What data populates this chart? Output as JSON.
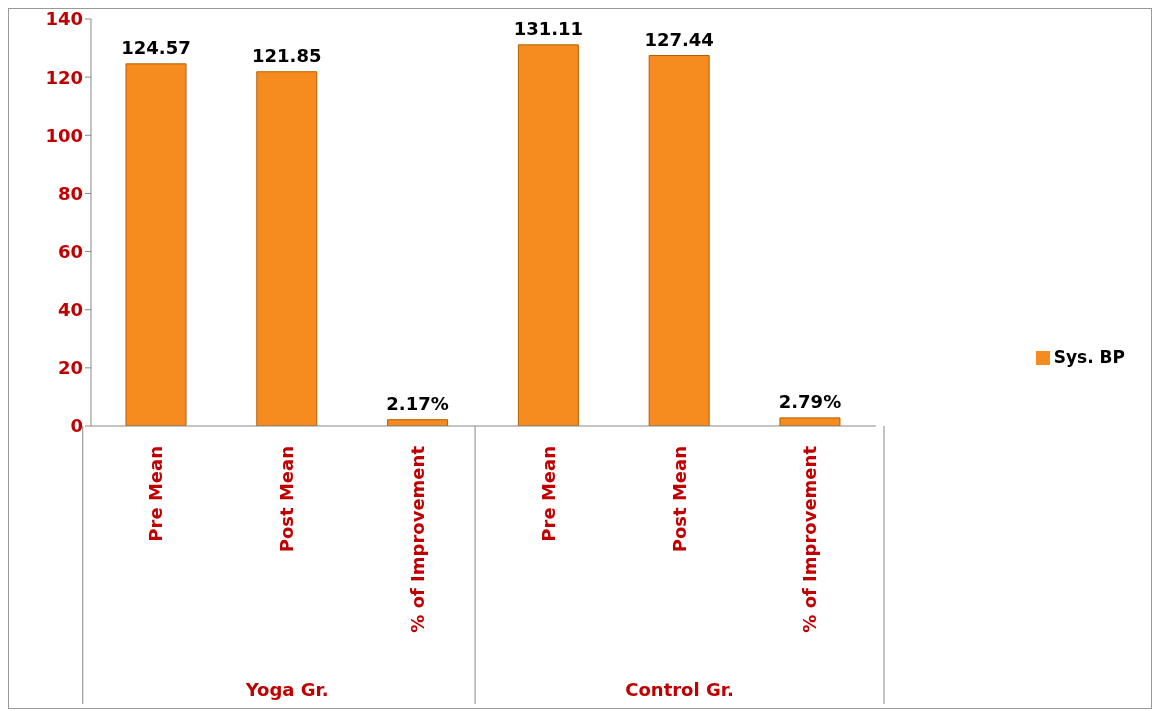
{
  "chart_data": {
    "type": "bar",
    "categories": [
      "Pre Mean",
      "Post Mean",
      "% of Improvement",
      "Pre Mean",
      "Post Mean",
      "% of Improvement"
    ],
    "series": [
      {
        "name": "Sys. BP",
        "color": "#f68b1f",
        "values": [
          124.57,
          121.85,
          2.17,
          131.11,
          127.44,
          2.79
        ],
        "value_labels": [
          "124.57",
          "121.85",
          "2.17%",
          "131.11",
          "127.44",
          "2.79%"
        ]
      }
    ],
    "ylim": [
      0,
      140
    ],
    "yticks": [
      0,
      20,
      40,
      60,
      80,
      100,
      120,
      140
    ],
    "legend": "right",
    "annotations": [
      "Yoga Gr.",
      "Control Gr."
    ]
  }
}
